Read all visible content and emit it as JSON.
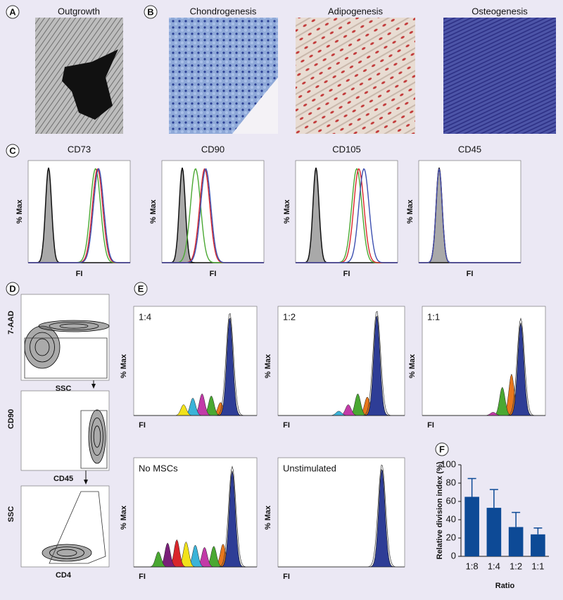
{
  "panels": {
    "A": {
      "label": "A",
      "title": "Outgrowth"
    },
    "B": {
      "label": "B",
      "titles": [
        "Chondrogenesis",
        "Adipogenesis",
        "Osteogenesis"
      ]
    },
    "C": {
      "label": "C",
      "plots": [
        {
          "title": "CD73",
          "ylabel": "% Max",
          "xlabel": "FI"
        },
        {
          "title": "CD90",
          "ylabel": "% Max",
          "xlabel": "FI"
        },
        {
          "title": "CD105",
          "ylabel": "% Max",
          "xlabel": "FI"
        },
        {
          "title": "CD45",
          "ylabel": "% Max",
          "xlabel": "FI"
        }
      ]
    },
    "D": {
      "label": "D",
      "plots": [
        {
          "ylabel": "7-AAD",
          "xlabel": "SSC"
        },
        {
          "ylabel": "CD90",
          "xlabel": "CD45"
        },
        {
          "ylabel": "SSC",
          "xlabel": "CD4"
        }
      ]
    },
    "E": {
      "label": "E",
      "plots": [
        {
          "title": "1:4",
          "ylabel": "% Max",
          "xlabel": "FI"
        },
        {
          "title": "1:2",
          "ylabel": "% Max",
          "xlabel": "FI"
        },
        {
          "title": "1:1",
          "ylabel": "% Max",
          "xlabel": "FI"
        },
        {
          "title": "No MSCs",
          "ylabel": "% Max",
          "xlabel": "FI"
        },
        {
          "title": "Unstimulated",
          "ylabel": "% Max",
          "xlabel": "FI"
        }
      ]
    },
    "F": {
      "label": "F"
    }
  },
  "chart_data": {
    "type": "bar",
    "categories": [
      "1:8",
      "1:4",
      "1:2",
      "1:1"
    ],
    "values": [
      65,
      53,
      32,
      24
    ],
    "errors": [
      20,
      20,
      16,
      7
    ],
    "color": "#0d4a96",
    "ylim": [
      0,
      100
    ],
    "yticks": [
      0,
      20,
      40,
      60,
      80,
      100
    ],
    "xlabel": "Ratio",
    "ylabel": "Relative division index (%)"
  }
}
